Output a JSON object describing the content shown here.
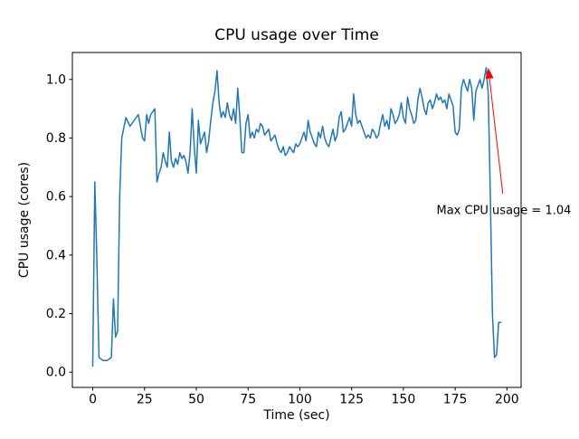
{
  "figure": {
    "background": "#ffffff"
  },
  "chart_data": {
    "type": "line",
    "title": "CPU usage over Time",
    "xlabel": "Time (sec)",
    "ylabel": "CPU usage (cores)",
    "xlim": [
      -9.85,
      206.85
    ],
    "ylim": [
      -0.052,
      1.092
    ],
    "grid": false,
    "legend": "none",
    "line_color": "#1f77b4",
    "x_ticks": {
      "values": [
        0,
        25,
        50,
        75,
        100,
        125,
        150,
        175,
        200
      ],
      "labels": [
        "0",
        "25",
        "50",
        "75",
        "100",
        "125",
        "150",
        "175",
        "200"
      ]
    },
    "y_ticks": {
      "values": [
        0.0,
        0.2,
        0.4,
        0.6,
        0.8,
        1.0
      ],
      "labels": [
        "0.0",
        "0.2",
        "0.4",
        "0.6",
        "0.8",
        "1.0"
      ]
    },
    "annotation": {
      "text": "Max CPU usage = 1.04",
      "color": "#ff0000",
      "text_xy": [
        166,
        0.54
      ],
      "arrow_tail": [
        198,
        0.61
      ],
      "arrow_tip": [
        191,
        1.04
      ]
    },
    "max_value": 1.04,
    "points": [
      [
        0,
        0.02
      ],
      [
        1,
        0.65
      ],
      [
        2,
        0.38
      ],
      [
        3,
        0.05
      ],
      [
        5,
        0.04
      ],
      [
        7,
        0.04
      ],
      [
        9,
        0.05
      ],
      [
        10,
        0.25
      ],
      [
        11,
        0.12
      ],
      [
        12,
        0.14
      ],
      [
        13,
        0.6
      ],
      [
        14,
        0.8
      ],
      [
        16,
        0.87
      ],
      [
        18,
        0.84
      ],
      [
        20,
        0.86
      ],
      [
        22,
        0.88
      ],
      [
        24,
        0.8
      ],
      [
        25,
        0.79
      ],
      [
        26,
        0.88
      ],
      [
        27,
        0.85
      ],
      [
        28,
        0.88
      ],
      [
        29,
        0.89
      ],
      [
        30,
        0.9
      ],
      [
        31,
        0.65
      ],
      [
        32,
        0.68
      ],
      [
        33,
        0.7
      ],
      [
        34,
        0.75
      ],
      [
        35,
        0.72
      ],
      [
        36,
        0.7
      ],
      [
        37,
        0.82
      ],
      [
        38,
        0.72
      ],
      [
        39,
        0.7
      ],
      [
        40,
        0.73
      ],
      [
        41,
        0.71
      ],
      [
        42,
        0.75
      ],
      [
        43,
        0.73
      ],
      [
        44,
        0.74
      ],
      [
        45,
        0.72
      ],
      [
        46,
        0.68
      ],
      [
        47,
        0.75
      ],
      [
        48,
        0.9
      ],
      [
        49,
        0.77
      ],
      [
        50,
        0.68
      ],
      [
        51,
        0.86
      ],
      [
        52,
        0.78
      ],
      [
        53,
        0.8
      ],
      [
        54,
        0.82
      ],
      [
        55,
        0.75
      ],
      [
        56,
        0.79
      ],
      [
        57,
        0.86
      ],
      [
        58,
        0.92
      ],
      [
        59,
        0.96
      ],
      [
        60,
        1.03
      ],
      [
        61,
        0.92
      ],
      [
        62,
        0.87
      ],
      [
        63,
        0.89
      ],
      [
        64,
        0.87
      ],
      [
        65,
        0.92
      ],
      [
        66,
        0.88
      ],
      [
        67,
        0.86
      ],
      [
        68,
        0.9
      ],
      [
        69,
        0.85
      ],
      [
        70,
        0.97
      ],
      [
        71,
        0.87
      ],
      [
        72,
        0.75
      ],
      [
        73,
        0.75
      ],
      [
        74,
        0.85
      ],
      [
        75,
        0.88
      ],
      [
        76,
        0.8
      ],
      [
        77,
        0.82
      ],
      [
        78,
        0.8
      ],
      [
        79,
        0.83
      ],
      [
        80,
        0.82
      ],
      [
        81,
        0.85
      ],
      [
        82,
        0.84
      ],
      [
        83,
        0.81
      ],
      [
        84,
        0.82
      ],
      [
        85,
        0.83
      ],
      [
        86,
        0.79
      ],
      [
        87,
        0.8
      ],
      [
        88,
        0.81
      ],
      [
        89,
        0.78
      ],
      [
        90,
        0.76
      ],
      [
        91,
        0.75
      ],
      [
        92,
        0.77
      ],
      [
        93,
        0.74
      ],
      [
        94,
        0.75
      ],
      [
        95,
        0.77
      ],
      [
        96,
        0.76
      ],
      [
        97,
        0.75
      ],
      [
        98,
        0.78
      ],
      [
        99,
        0.77
      ],
      [
        100,
        0.78
      ],
      [
        101,
        0.8
      ],
      [
        102,
        0.82
      ],
      [
        103,
        0.79
      ],
      [
        104,
        0.86
      ],
      [
        105,
        0.82
      ],
      [
        106,
        0.8
      ],
      [
        107,
        0.78
      ],
      [
        108,
        0.77
      ],
      [
        109,
        0.82
      ],
      [
        110,
        0.8
      ],
      [
        111,
        0.84
      ],
      [
        112,
        0.8
      ],
      [
        113,
        0.78
      ],
      [
        114,
        0.77
      ],
      [
        115,
        0.8
      ],
      [
        116,
        0.83
      ],
      [
        117,
        0.79
      ],
      [
        118,
        0.81
      ],
      [
        119,
        0.87
      ],
      [
        120,
        0.89
      ],
      [
        121,
        0.82
      ],
      [
        122,
        0.83
      ],
      [
        123,
        0.85
      ],
      [
        124,
        0.87
      ],
      [
        125,
        0.84
      ],
      [
        126,
        0.95
      ],
      [
        127,
        0.88
      ],
      [
        128,
        0.85
      ],
      [
        129,
        0.86
      ],
      [
        130,
        0.84
      ],
      [
        131,
        0.82
      ],
      [
        132,
        0.8
      ],
      [
        133,
        0.81
      ],
      [
        134,
        0.8
      ],
      [
        135,
        0.83
      ],
      [
        136,
        0.82
      ],
      [
        137,
        0.8
      ],
      [
        138,
        0.81
      ],
      [
        139,
        0.85
      ],
      [
        140,
        0.88
      ],
      [
        141,
        0.84
      ],
      [
        142,
        0.86
      ],
      [
        143,
        0.83
      ],
      [
        144,
        0.9
      ],
      [
        145,
        0.88
      ],
      [
        146,
        0.85
      ],
      [
        147,
        0.86
      ],
      [
        148,
        0.88
      ],
      [
        149,
        0.92
      ],
      [
        150,
        0.87
      ],
      [
        151,
        0.85
      ],
      [
        152,
        0.94
      ],
      [
        153,
        0.9
      ],
      [
        154,
        0.88
      ],
      [
        155,
        0.85
      ],
      [
        156,
        0.86
      ],
      [
        157,
        0.93
      ],
      [
        158,
        0.97
      ],
      [
        159,
        0.94
      ],
      [
        160,
        0.9
      ],
      [
        161,
        0.88
      ],
      [
        162,
        0.92
      ],
      [
        163,
        0.93
      ],
      [
        164,
        0.9
      ],
      [
        165,
        0.92
      ],
      [
        166,
        0.95
      ],
      [
        167,
        0.93
      ],
      [
        168,
        0.94
      ],
      [
        169,
        0.92
      ],
      [
        170,
        0.93
      ],
      [
        171,
        0.9
      ],
      [
        172,
        0.95
      ],
      [
        173,
        0.93
      ],
      [
        174,
        0.91
      ],
      [
        175,
        0.82
      ],
      [
        176,
        0.81
      ],
      [
        177,
        0.83
      ],
      [
        178,
        0.97
      ],
      [
        179,
        1.0
      ],
      [
        180,
        0.98
      ],
      [
        181,
        0.96
      ],
      [
        182,
        1.0
      ],
      [
        183,
        0.97
      ],
      [
        184,
        0.86
      ],
      [
        185,
        0.96
      ],
      [
        186,
        0.98
      ],
      [
        187,
        1.0
      ],
      [
        188,
        0.97
      ],
      [
        189,
        1.0
      ],
      [
        190,
        1.04
      ],
      [
        191,
        0.95
      ],
      [
        192,
        0.6
      ],
      [
        193,
        0.2
      ],
      [
        194,
        0.05
      ],
      [
        195,
        0.06
      ],
      [
        196,
        0.17
      ],
      [
        197,
        0.17
      ]
    ]
  }
}
